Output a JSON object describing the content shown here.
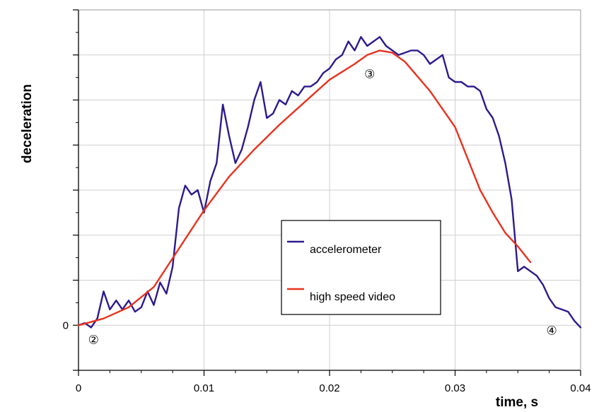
{
  "chart_data": {
    "type": "line",
    "title": "",
    "xlabel": "time, s",
    "ylabel": "deceleration",
    "xlim": [
      0,
      0.04
    ],
    "ylim": [
      -1.0,
      7.0
    ],
    "grid": true,
    "x_ticks": [
      {
        "value": 0,
        "label": "0"
      },
      {
        "value": 0.01,
        "label": "0.01"
      },
      {
        "value": 0.02,
        "label": "0.02"
      },
      {
        "value": 0.03,
        "label": "0.03"
      },
      {
        "value": 0.04,
        "label": "0.04"
      }
    ],
    "y_ticks": [
      {
        "value": 0,
        "label": "0"
      }
    ],
    "y_grid_values": [
      -1,
      0,
      1,
      2,
      3,
      4,
      5,
      6,
      7
    ],
    "y_minor_ticks": [
      0.5,
      1.5,
      2.5,
      3.5,
      4.5,
      5.5,
      6.5
    ],
    "legend": {
      "position": "center-right",
      "entries": [
        {
          "label": "accelerometer",
          "color": "#2e1a8c"
        },
        {
          "label": "high speed video",
          "color": "#e8321e"
        }
      ]
    },
    "annotations": [
      {
        "text": "②",
        "x": 0.0012,
        "y": -0.3
      },
      {
        "text": "③",
        "x": 0.0232,
        "y": 5.6
      },
      {
        "text": "④",
        "x": 0.0377,
        "y": -0.1
      }
    ],
    "series": [
      {
        "name": "accelerometer",
        "color": "#2e1a8c",
        "x": [
          0,
          0.0005,
          0.001,
          0.0015,
          0.002,
          0.0025,
          0.003,
          0.0035,
          0.004,
          0.0045,
          0.005,
          0.0055,
          0.006,
          0.0065,
          0.007,
          0.0075,
          0.008,
          0.0085,
          0.009,
          0.0095,
          0.01,
          0.0105,
          0.011,
          0.0115,
          0.012,
          0.0125,
          0.013,
          0.0135,
          0.014,
          0.0145,
          0.015,
          0.0155,
          0.016,
          0.0165,
          0.017,
          0.0175,
          0.018,
          0.0185,
          0.019,
          0.0195,
          0.02,
          0.0205,
          0.021,
          0.0215,
          0.022,
          0.0225,
          0.023,
          0.0235,
          0.024,
          0.0245,
          0.025,
          0.0255,
          0.026,
          0.0265,
          0.027,
          0.0275,
          0.028,
          0.0285,
          0.029,
          0.0295,
          0.03,
          0.0305,
          0.031,
          0.0315,
          0.032,
          0.0325,
          0.033,
          0.0335,
          0.034,
          0.0345,
          0.035,
          0.0355,
          0.036,
          0.0365,
          0.037,
          0.0375,
          0.038,
          0.0385,
          0.039,
          0.0395,
          0.04
        ],
        "y": [
          0.0,
          0.05,
          -0.05,
          0.15,
          0.75,
          0.35,
          0.55,
          0.35,
          0.55,
          0.3,
          0.4,
          0.75,
          0.45,
          0.95,
          0.7,
          1.3,
          2.6,
          3.1,
          2.9,
          3.0,
          2.5,
          3.2,
          3.6,
          4.9,
          4.2,
          3.6,
          3.9,
          4.4,
          5.0,
          5.4,
          4.6,
          4.7,
          5.0,
          4.9,
          5.2,
          5.1,
          5.3,
          5.3,
          5.4,
          5.6,
          5.7,
          5.9,
          6.0,
          6.3,
          6.1,
          6.4,
          6.2,
          6.3,
          6.4,
          6.2,
          6.1,
          6.0,
          6.05,
          6.1,
          6.1,
          6.0,
          5.8,
          5.9,
          6.0,
          5.5,
          5.4,
          5.4,
          5.3,
          5.3,
          5.2,
          4.8,
          4.6,
          4.2,
          3.6,
          2.8,
          1.2,
          1.3,
          1.2,
          1.1,
          0.9,
          0.6,
          0.4,
          0.35,
          0.3,
          0.1,
          -0.05
        ]
      },
      {
        "name": "high speed video",
        "color": "#e8321e",
        "x": [
          0,
          0.002,
          0.004,
          0.006,
          0.008,
          0.01,
          0.012,
          0.014,
          0.016,
          0.018,
          0.02,
          0.022,
          0.023,
          0.024,
          0.025,
          0.026,
          0.028,
          0.03,
          0.032,
          0.033,
          0.034,
          0.035,
          0.036
        ],
        "y": [
          0.0,
          0.15,
          0.4,
          0.85,
          1.7,
          2.55,
          3.3,
          3.9,
          4.45,
          4.95,
          5.45,
          5.8,
          6.0,
          6.1,
          6.05,
          5.85,
          5.2,
          4.4,
          3.0,
          2.5,
          2.05,
          1.75,
          1.4
        ]
      }
    ]
  }
}
